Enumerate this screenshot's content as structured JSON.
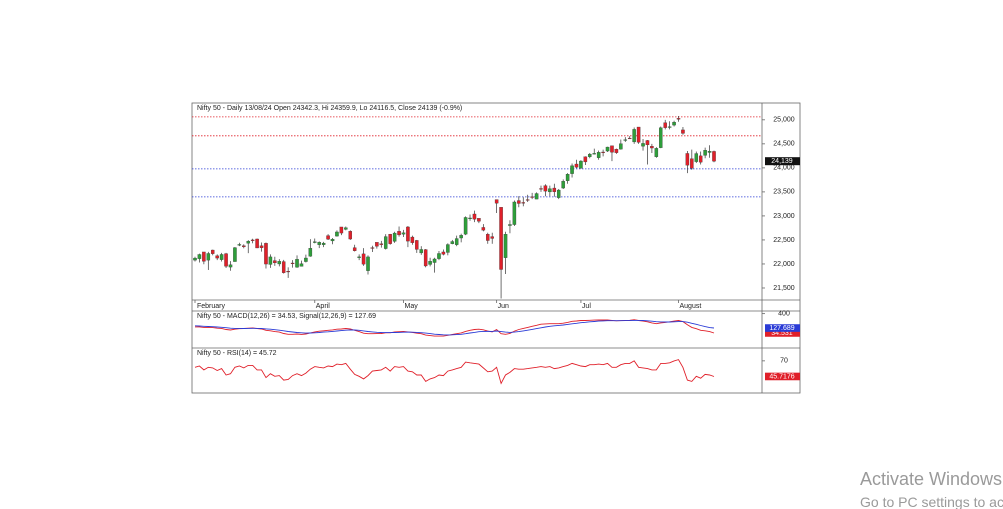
{
  "chart_data": [
    {
      "type": "candlestick",
      "title": "Nifty 50 - Daily 13/08/24 Open 24342.3, Hi 24359.9, Lo 24116.5, Close 24139 (-0.9%)",
      "categories": [
        "February",
        null,
        null,
        null,
        null,
        null,
        null,
        null,
        null,
        null,
        null,
        null,
        null,
        null,
        null,
        null,
        null,
        null,
        null,
        null,
        null,
        null,
        null,
        null,
        null,
        null,
        null,
        "April",
        null,
        null,
        null,
        null,
        null,
        null,
        null,
        null,
        null,
        null,
        null,
        null,
        null,
        null,
        null,
        null,
        null,
        null,
        null,
        "May",
        null,
        null,
        null,
        null,
        null,
        null,
        null,
        null,
        null,
        null,
        null,
        null,
        null,
        null,
        null,
        null,
        null,
        null,
        null,
        null,
        "Jun",
        null,
        null,
        null,
        null,
        null,
        null,
        null,
        null,
        null,
        null,
        null,
        null,
        null,
        null,
        null,
        null,
        null,
        null,
        "Jul",
        null,
        null,
        null,
        null,
        null,
        null,
        null,
        null,
        null,
        null,
        null,
        null,
        null,
        null,
        null,
        null,
        null,
        null,
        null,
        null,
        null,
        "August",
        null,
        null,
        null,
        null,
        null,
        null,
        null,
        null
      ],
      "open": [
        22080,
        22110,
        22250,
        22080,
        22290,
        22170,
        22090,
        22215,
        21935,
        22050,
        22400,
        22380,
        22430,
        22500,
        22520,
        22380,
        22430,
        21990,
        22070,
        22000,
        22050,
        21850,
        22020,
        21930,
        21950,
        22050,
        22160,
        22460,
        22400,
        22400,
        22590,
        22480,
        22580,
        22770,
        22720,
        22680,
        22340,
        22130,
        22210,
        21860,
        22340,
        22450,
        22420,
        22320,
        22620,
        22470,
        22680,
        22620,
        22770,
        22560,
        22490,
        22230,
        22300,
        21990,
        22030,
        22110,
        22250,
        22240,
        22420,
        22400,
        22540,
        22620,
        22950,
        23040,
        22950,
        22760,
        22620,
        22570,
        23340,
        23180,
        22130,
        22800,
        22820,
        23320,
        23280,
        23340,
        23400,
        23350,
        23570,
        23630,
        23500,
        23580,
        23380,
        23580,
        23730,
        23880,
        24080,
        23990,
        24230,
        24230,
        24290,
        24210,
        24330,
        24350,
        24460,
        24390,
        24390,
        24570,
        24620,
        24540,
        24850,
        24450,
        24570,
        24450,
        24230,
        24420,
        24940,
        24840,
        24890,
        25030,
        24790,
        24300,
        24190,
        24130,
        24250,
        24260,
        24320,
        24342.3
      ],
      "high": [
        22150,
        22215,
        22250,
        22252,
        22297,
        22200,
        22230,
        22230,
        22060,
        22353,
        22441,
        22410,
        22497,
        22525,
        22527,
        22447,
        22446,
        22200,
        22150,
        22100,
        22085,
        21930,
        22080,
        22180,
        22070,
        22195,
        22516,
        22530,
        22470,
        22460,
        22620,
        22540,
        22700,
        22770,
        22780,
        22700,
        22400,
        22200,
        22330,
        22180,
        22380,
        22450,
        22480,
        22620,
        22625,
        22670,
        22780,
        22710,
        22790,
        22590,
        22500,
        22370,
        22310,
        22130,
        22130,
        22270,
        22300,
        22430,
        22500,
        22590,
        22630,
        22990,
        23030,
        23110,
        22950,
        22830,
        22650,
        22650,
        23340,
        23180,
        22670,
        22910,
        23320,
        23410,
        23390,
        23440,
        23480,
        23490,
        23630,
        23660,
        23630,
        23670,
        23560,
        23760,
        23890,
        24090,
        24170,
        24160,
        24240,
        24310,
        24400,
        24360,
        24380,
        24440,
        24460,
        24400,
        24590,
        24640,
        24660,
        24840,
        24850,
        24600,
        24580,
        24500,
        24430,
        24860,
        24999,
        24970,
        24980,
        25080,
        24850,
        24350,
        24380,
        24340,
        24340,
        24420,
        24470,
        24359.9
      ],
      "low": [
        22050,
        22030,
        21995,
        21875,
        22180,
        22080,
        22050,
        21915,
        21860,
        22047,
        22370,
        22326,
        22225,
        22430,
        22330,
        22256,
        21905,
        21918,
        21960,
        21950,
        21800,
        21710,
        21925,
        21920,
        21950,
        22030,
        22150,
        22430,
        22330,
        22350,
        22500,
        22410,
        22570,
        22600,
        22700,
        22500,
        22260,
        22080,
        21960,
        21780,
        22250,
        22320,
        22340,
        22300,
        22400,
        22440,
        22570,
        22560,
        22350,
        22400,
        22230,
        22190,
        21930,
        21950,
        21820,
        22080,
        22180,
        22180,
        22410,
        22370,
        22450,
        22600,
        22900,
        22870,
        22850,
        22680,
        22420,
        22420,
        23060,
        21280,
        21790,
        22640,
        22790,
        23180,
        23200,
        23290,
        23350,
        23350,
        23500,
        23410,
        23410,
        23400,
        23350,
        23560,
        23670,
        23800,
        23990,
        23990,
        24060,
        24200,
        24280,
        24170,
        24240,
        24330,
        24140,
        24290,
        24380,
        24540,
        24600,
        24500,
        24500,
        24360,
        24070,
        24310,
        24210,
        24410,
        24800,
        24800,
        24860,
        24960,
        24690,
        23890,
        23960,
        24100,
        24070,
        24200,
        24210,
        24116.5
      ],
      "close": [
        22122,
        22197,
        22055,
        22218,
        22213,
        22122,
        22198,
        21951,
        21983,
        22339,
        22406,
        22356,
        22474,
        22493,
        22333,
        22336,
        21998,
        22147,
        22023,
        22056,
        21817,
        21839,
        22012,
        22097,
        22005,
        22124,
        22327,
        22462,
        22453,
        22434,
        22515,
        22514,
        22666,
        22643,
        22754,
        22519,
        22273,
        22148,
        21996,
        22147,
        22336,
        22368,
        22402,
        22570,
        22420,
        22643,
        22605,
        22648,
        22476,
        22443,
        22303,
        22302,
        21958,
        22055,
        22104,
        22218,
        22201,
        22404,
        22467,
        22529,
        22597,
        22968,
        22957,
        22932,
        22888,
        22704,
        22488,
        22531,
        23264,
        21885,
        22620,
        22821,
        23290,
        23259,
        23265,
        23323,
        23399,
        23466,
        23558,
        23516,
        23567,
        23501,
        23538,
        23721,
        23869,
        24044,
        24011,
        24142,
        24124,
        24286,
        24302,
        24324,
        24321,
        24433,
        24324,
        24316,
        24502,
        24587,
        24613,
        24801,
        24531,
        24509,
        24479,
        24413,
        24406,
        24834,
        24836,
        24857,
        24951,
        25011,
        24718,
        24056,
        23993,
        24298,
        24117,
        24368,
        24347,
        24139
      ],
      "up_color": "#2e9e3a",
      "down_color": "#e0202a",
      "ylim": [
        21250,
        25350
      ],
      "yticks": [
        {
          "value": 21500,
          "label": "21,500"
        },
        {
          "value": 22000,
          "label": "22,000"
        },
        {
          "value": 22500,
          "label": "22,500"
        },
        {
          "value": 23000,
          "label": "23,000"
        },
        {
          "value": 23500,
          "label": "23,500"
        },
        {
          "value": 24000,
          "label": "24,000"
        },
        {
          "value": 24500,
          "label": "24,500"
        },
        {
          "value": 25000,
          "label": "25,000"
        }
      ],
      "hlines": [
        {
          "value": 25062,
          "color": "#e0202a"
        },
        {
          "value": 24667,
          "color": "#e0202a"
        },
        {
          "value": 23979,
          "color": "#2a3bd6"
        },
        {
          "value": 23396,
          "color": "#2a3bd6"
        }
      ],
      "last_price": {
        "value": 24139,
        "label": "24,139"
      }
    },
    {
      "type": "line",
      "title": "Nifty 50 - MACD(12,26) = 34.53, Signal(12,26,9) = 127.69",
      "series": [
        {
          "color": "#e0202a",
          "values": [
            150,
            150,
            140,
            140,
            135,
            125,
            120,
            100,
            90,
            105,
            115,
            118,
            125,
            128,
            118,
            110,
            85,
            75,
            60,
            50,
            25,
            10,
            10,
            15,
            8,
            15,
            35,
            55,
            68,
            75,
            85,
            92,
            105,
            110,
            118,
            110,
            85,
            60,
            30,
            20,
            20,
            22,
            25,
            38,
            38,
            52,
            58,
            62,
            55,
            45,
            30,
            20,
            -5,
            -15,
            -25,
            -25,
            -25,
            -10,
            5,
            20,
            35,
            65,
            85,
            100,
            105,
            95,
            70,
            55,
            100,
            20,
            10,
            25,
            70,
            100,
            120,
            140,
            160,
            180,
            200,
            205,
            210,
            210,
            210,
            220,
            235,
            255,
            260,
            270,
            270,
            275,
            278,
            280,
            280,
            282,
            272,
            265,
            268,
            272,
            275,
            285,
            270,
            260,
            245,
            225,
            210,
            225,
            235,
            245,
            258,
            270,
            250,
            190,
            140,
            115,
            85,
            75,
            60,
            34.531
          ]
        },
        {
          "color": "#2a3bd6",
          "values": [
            170,
            166,
            161,
            157,
            153,
            148,
            142,
            134,
            125,
            121,
            120,
            119,
            120,
            122,
            121,
            119,
            112,
            105,
            96,
            87,
            75,
            62,
            52,
            44,
            37,
            32,
            33,
            37,
            43,
            50,
            57,
            64,
            72,
            80,
            87,
            92,
            90,
            84,
            73,
            62,
            54,
            47,
            43,
            42,
            41,
            43,
            46,
            49,
            50,
            49,
            45,
            40,
            31,
            22,
            12,
            5,
            -1,
            -3,
            -1,
            3,
            9,
            20,
            33,
            46,
            58,
            65,
            66,
            64,
            71,
            61,
            51,
            46,
            51,
            61,
            73,
            86,
            101,
            117,
            133,
            148,
            160,
            170,
            178,
            186,
            196,
            208,
            218,
            228,
            237,
            245,
            252,
            258,
            262,
            266,
            267,
            267,
            267,
            268,
            269,
            272,
            272,
            270,
            265,
            257,
            248,
            243,
            242,
            242,
            245,
            250,
            250,
            238,
            218,
            198,
            175,
            155,
            136,
            127.689
          ]
        }
      ],
      "ylim": [
        -250,
        450
      ],
      "yticks": [
        400
      ]
    },
    {
      "type": "line",
      "title": "Nifty 50 - RSI(14) = 45.72",
      "series": [
        {
          "color": "#e0202a",
          "values": [
            60,
            62,
            56,
            60,
            59,
            55,
            58,
            48,
            50,
            60,
            62,
            59,
            63,
            63,
            56,
            56,
            44,
            50,
            46,
            47,
            40,
            41,
            47,
            50,
            47,
            51,
            57,
            61,
            60,
            59,
            62,
            61,
            65,
            64,
            66,
            57,
            49,
            46,
            42,
            47,
            54,
            55,
            56,
            60,
            54,
            61,
            60,
            61,
            54,
            53,
            48,
            48,
            38,
            42,
            44,
            48,
            47,
            54,
            56,
            58,
            60,
            68,
            67,
            66,
            65,
            59,
            53,
            54,
            60,
            35,
            48,
            52,
            58,
            57,
            57,
            58,
            59,
            60,
            61,
            60,
            61,
            58,
            59,
            61,
            63,
            66,
            64,
            62,
            61,
            64,
            64,
            65,
            64,
            66,
            60,
            60,
            64,
            66,
            66,
            70,
            60,
            59,
            58,
            56,
            56,
            66,
            66,
            67,
            70,
            72,
            60,
            40,
            38,
            46,
            43,
            49,
            48,
            45.7176
          ]
        }
      ],
      "ylim": [
        20,
        90
      ],
      "yticks": [
        70
      ]
    }
  ],
  "watermark": {
    "line1": "Activate Windows",
    "line2": "Go to PC settings to activate Windows."
  }
}
